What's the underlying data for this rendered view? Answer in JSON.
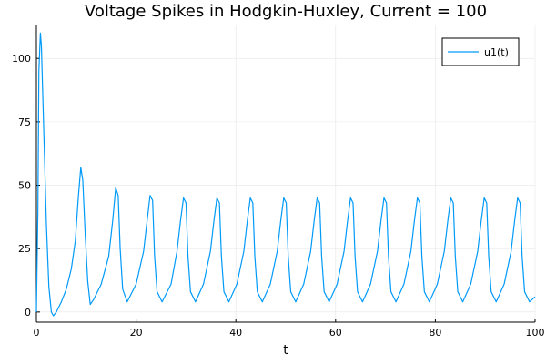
{
  "chart_data": {
    "type": "line",
    "title": "Voltage Spikes in Hodgkin-Huxley, Current = 100",
    "xlabel": "t",
    "ylabel": "",
    "xlim": [
      0,
      100
    ],
    "ylim": [
      -4,
      113
    ],
    "xticks": [
      0,
      20,
      40,
      60,
      80,
      100
    ],
    "yticks": [
      0,
      25,
      50,
      75,
      100
    ],
    "grid": true,
    "legend_position": "top-right",
    "series": [
      {
        "name": "u1(t)",
        "color": "#009af9",
        "x": [
          0,
          0.3,
          0.5,
          0.8,
          1.0,
          1.5,
          2.0,
          2.5,
          3.0,
          3.4,
          4,
          5,
          6,
          7,
          7.8,
          8.4,
          8.9,
          9.3,
          9.8,
          10.3,
          10.8,
          11.5,
          13,
          14.5,
          15.3,
          15.9,
          16.4,
          16.8,
          17.3,
          18.2,
          20,
          21.5,
          22.2,
          22.8,
          23.3,
          23.7,
          24.2,
          25.2,
          27,
          28.2,
          28.9,
          29.5,
          30,
          30.4,
          30.9,
          31.9,
          33.5,
          34.9,
          35.6,
          36.2,
          36.7,
          37.1,
          37.6,
          38.6,
          40.2,
          41.6,
          42.3,
          42.9,
          43.4,
          43.8,
          44.3,
          45.3,
          46.9,
          48.3,
          49.0,
          49.6,
          50.1,
          50.5,
          51.0,
          52.0,
          53.6,
          55.0,
          55.7,
          56.3,
          56.8,
          57.2,
          57.7,
          58.7,
          60.3,
          61.7,
          62.4,
          63.0,
          63.5,
          63.9,
          64.4,
          65.4,
          67.0,
          68.4,
          69.1,
          69.7,
          70.2,
          70.6,
          71.1,
          72.1,
          73.7,
          75.1,
          75.8,
          76.4,
          76.9,
          77.3,
          77.8,
          78.8,
          80.4,
          81.8,
          82.5,
          83.1,
          83.6,
          84.0,
          84.5,
          85.5,
          87.1,
          88.5,
          89.2,
          89.8,
          90.3,
          90.7,
          91.2,
          92.2,
          93.8,
          95.2,
          95.9,
          96.5,
          97.0,
          97.4,
          97.9,
          98.9,
          100
        ],
        "y": [
          0,
          40,
          95,
          110,
          105,
          70,
          35,
          10,
          0,
          -1.5,
          0,
          4,
          9,
          17,
          28,
          45,
          57,
          52,
          30,
          12,
          3,
          5,
          11,
          22,
          36,
          49,
          46,
          25,
          9,
          4,
          11,
          24,
          36,
          46,
          44,
          22,
          8,
          4,
          11,
          24,
          36,
          45,
          43,
          22,
          8,
          4,
          11,
          24,
          36,
          45,
          43,
          22,
          8,
          4,
          11,
          24,
          36,
          45,
          43,
          22,
          8,
          4,
          11,
          24,
          36,
          45,
          43,
          22,
          8,
          4,
          11,
          24,
          36,
          45,
          43,
          22,
          8,
          4,
          11,
          24,
          36,
          45,
          43,
          22,
          8,
          4,
          11,
          24,
          36,
          45,
          43,
          22,
          8,
          4,
          11,
          24,
          36,
          45,
          43,
          22,
          8,
          4,
          11,
          24,
          36,
          45,
          43,
          22,
          8,
          4,
          11,
          24,
          36,
          45,
          43,
          22,
          8,
          4,
          11,
          24,
          36,
          45,
          43,
          22,
          8,
          4,
          6
        ]
      }
    ]
  }
}
